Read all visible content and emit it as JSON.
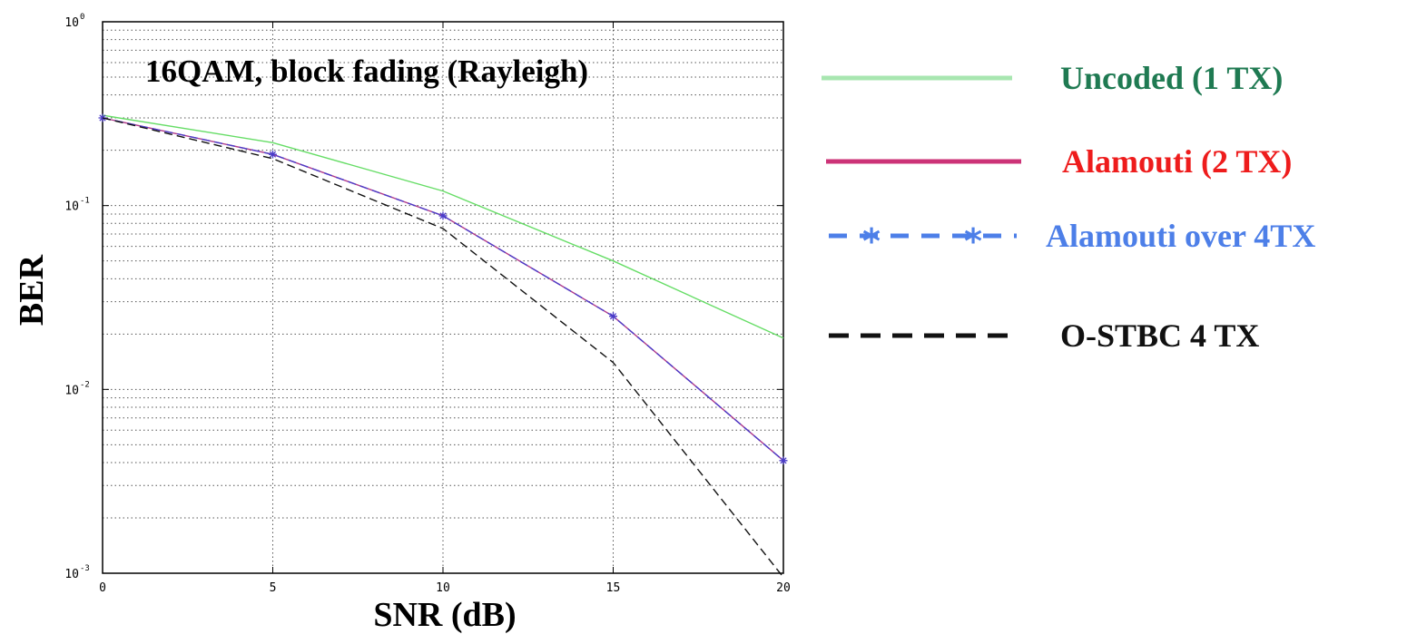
{
  "chart_data": {
    "type": "line",
    "title": "16QAM, block fading (Rayleigh)",
    "xlabel": "SNR (dB)",
    "ylabel": "BER",
    "x_scale": "linear",
    "y_scale": "log",
    "xlim": [
      0,
      20
    ],
    "ylim": [
      0.001,
      1
    ],
    "grid": true,
    "legend_position": "right-outside",
    "x_ticks": [
      0,
      5,
      10,
      15,
      20
    ],
    "x_tick_labels": [
      "0",
      "5",
      "10",
      "15",
      "20"
    ],
    "y_ticks": [
      0.001,
      0.01,
      0.1,
      1
    ],
    "y_tick_labels": [
      {
        "base": "10",
        "exp": "-3"
      },
      {
        "base": "10",
        "exp": "-2"
      },
      {
        "base": "10",
        "exp": "-1"
      },
      {
        "base": "10",
        "exp": "0"
      }
    ],
    "x": [
      0,
      5,
      10,
      15,
      20
    ],
    "series": [
      {
        "name": "Uncoded (1 TX)",
        "values": [
          0.31,
          0.22,
          0.12,
          0.05,
          0.019
        ],
        "color": "#66dd66",
        "legend_color": "#a8e6b0",
        "text_color": "#1f7a52",
        "style": "solid",
        "marker": "none"
      },
      {
        "name": "Alamouti (2 TX)",
        "values": [
          0.3,
          0.19,
          0.088,
          0.025,
          0.0041
        ],
        "color": "#b03a8a",
        "legend_color": "#cc3377",
        "text_color": "#ee1c1c",
        "style": "solid",
        "marker": "none"
      },
      {
        "name": "Alamouti over 4TX",
        "values": [
          0.3,
          0.19,
          0.088,
          0.025,
          0.0041
        ],
        "color": "#4b3cc8",
        "legend_color": "#4d7fe8",
        "text_color": "#4d7fe8",
        "style": "dashed",
        "marker": "star"
      },
      {
        "name": "O-STBC 4 TX",
        "values": [
          0.3,
          0.18,
          0.075,
          0.014,
          0.00095
        ],
        "color": "#111111",
        "legend_color": "#111111",
        "text_color": "#111111",
        "style": "dashed",
        "marker": "none"
      }
    ]
  }
}
